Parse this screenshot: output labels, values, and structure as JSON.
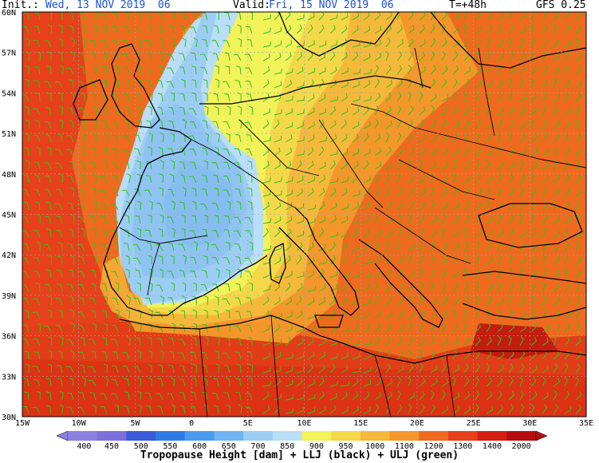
{
  "header": {
    "init_label": "Init.:",
    "init_value": "Wed, 13 NOV 2019  06",
    "valid_label": "Valid:",
    "valid_value": "Fri, 15 NOV 2019  06",
    "lead": "T=+48h",
    "model": "GFS 0.25"
  },
  "lat_labels": [
    "60N",
    "57N",
    "54N",
    "51N",
    "48N",
    "45N",
    "42N",
    "39N",
    "36N",
    "33N",
    "30N"
  ],
  "lon_labels": [
    "15W",
    "10W",
    "5W",
    "0",
    "5E",
    "10E",
    "15E",
    "20E",
    "25E",
    "30E",
    "35E"
  ],
  "colorbar": {
    "values": [
      "400",
      "450",
      "500",
      "550",
      "600",
      "650",
      "700",
      "850",
      "900",
      "950",
      "1000",
      "1100",
      "1200",
      "1300",
      "1400",
      "2000"
    ],
    "colors": [
      "#8a7fe0",
      "#7d6fdb",
      "#3a5bd8",
      "#2f7be6",
      "#4a9bee",
      "#6fb4f2",
      "#9ccdf5",
      "#b9def7",
      "#f2f25a",
      "#f4d84a",
      "#f6b83a",
      "#f4962a",
      "#ef6a1f",
      "#e8401a",
      "#d41e12",
      "#b50e0e"
    ]
  },
  "footer": "Tropopause Height [dam] + LLJ (black) + ULJ (green)"
}
